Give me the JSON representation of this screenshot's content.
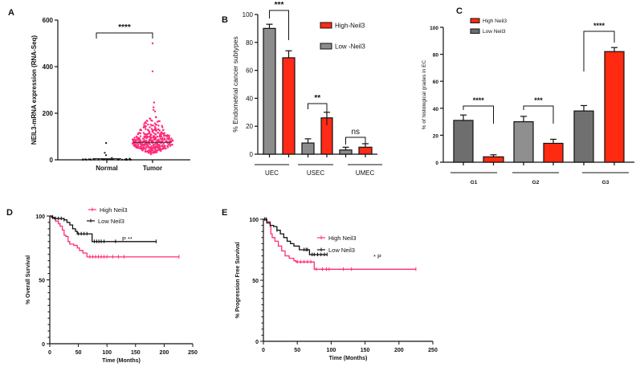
{
  "panel_labels": [
    "A",
    "B",
    "C",
    "D",
    "E"
  ],
  "chart_data": [
    {
      "panel": "A",
      "type": "scatter",
      "ylabel": "NEIL3-mRNA expression (RNA-Seq)",
      "categories": [
        "Normal",
        "Tumor"
      ],
      "ylim": [
        0,
        600
      ],
      "yticks": [
        0,
        200,
        400,
        600
      ],
      "medians": [
        5,
        75
      ],
      "max_values": [
        72,
        500
      ],
      "colors": [
        "#111111",
        "#ff2d7a"
      ],
      "significance": "****"
    },
    {
      "panel": "B",
      "type": "bar",
      "ylabel": "% Endometrial cancer subtypes",
      "categories": [
        "UEC",
        "USEC",
        "UMEC"
      ],
      "ylim": [
        0,
        100
      ],
      "yticks": [
        0,
        20,
        40,
        60,
        80,
        100
      ],
      "series": [
        {
          "name": "High-Neil3",
          "values": [
            69,
            26,
            5
          ],
          "errors": [
            5,
            4,
            2.5
          ],
          "color": "#ff2a17"
        },
        {
          "name": "Low -Neil3",
          "values": [
            90,
            8,
            3
          ],
          "errors": [
            3,
            3,
            2
          ],
          "color": "#8c8c8c"
        }
      ],
      "significance": [
        "***",
        "**",
        "ns"
      ],
      "legend": "top-right"
    },
    {
      "panel": "C",
      "type": "bar",
      "ylabel": "% of histological grades in EC",
      "categories": [
        "G1",
        "G2",
        "G3"
      ],
      "ylim": [
        0,
        100
      ],
      "yticks": [
        0,
        20,
        40,
        60,
        80,
        100
      ],
      "series": [
        {
          "name": "High Neil3",
          "values": [
            4,
            14,
            82
          ],
          "errors": [
            1.5,
            3,
            3
          ],
          "color": "#ff2a10"
        },
        {
          "name": "Low Neil3",
          "values": [
            31,
            30,
            38
          ],
          "errors": [
            4,
            4,
            4
          ],
          "color": "#707070"
        }
      ],
      "significance": [
        "****",
        "***",
        "****"
      ],
      "legend": "top-left"
    },
    {
      "panel": "D",
      "type": "line",
      "ylabel": "% Overall Survival",
      "xlabel": "Time (Months)",
      "xlim": [
        0,
        250
      ],
      "ylim": [
        0,
        100
      ],
      "xticks": [
        0,
        50,
        100,
        150,
        200,
        250
      ],
      "yticks": [
        0,
        50,
        100
      ],
      "annotation": "P **",
      "series": [
        {
          "name": "High Neil3",
          "color": "#ff2d7a",
          "steps": [
            [
              0,
              100
            ],
            [
              5,
              98
            ],
            [
              10,
              96
            ],
            [
              15,
              94
            ],
            [
              18,
              92
            ],
            [
              22,
              89
            ],
            [
              25,
              85
            ],
            [
              28,
              84
            ],
            [
              32,
              80
            ],
            [
              35,
              78
            ],
            [
              42,
              77
            ],
            [
              48,
              75
            ],
            [
              52,
              73
            ],
            [
              58,
              71
            ],
            [
              65,
              68
            ],
            [
              226,
              68
            ]
          ],
          "censored": [
            70,
            75,
            80,
            85,
            90,
            95,
            100,
            110,
            120,
            130,
            226
          ]
        },
        {
          "name": "Low Neil3",
          "color": "#111111",
          "steps": [
            [
              0,
              100
            ],
            [
              3,
              99
            ],
            [
              8,
              98
            ],
            [
              25,
              97
            ],
            [
              30,
              95
            ],
            [
              35,
              93
            ],
            [
              40,
              90
            ],
            [
              45,
              88
            ],
            [
              48,
              86
            ],
            [
              74,
              80
            ],
            [
              186,
              80
            ]
          ],
          "censored": [
            5,
            10,
            15,
            20,
            25,
            50,
            55,
            60,
            65,
            78,
            82,
            86,
            90,
            95,
            115,
            186
          ]
        }
      ]
    },
    {
      "panel": "E",
      "type": "line",
      "ylabel": "% Progression Free Survival",
      "xlabel": "Time (Months)",
      "xlim": [
        0,
        250
      ],
      "ylim": [
        0,
        100
      ],
      "xticks": [
        0,
        50,
        100,
        150,
        200,
        250
      ],
      "yticks": [
        0,
        50,
        100
      ],
      "annotation": "* P",
      "series": [
        {
          "name": "High Neil3",
          "color": "#ff2d7a",
          "steps": [
            [
              0,
              100
            ],
            [
              5,
              98
            ],
            [
              10,
              94
            ],
            [
              11,
              88
            ],
            [
              13,
              85
            ],
            [
              17,
              82
            ],
            [
              22,
              78
            ],
            [
              27,
              74
            ],
            [
              32,
              70
            ],
            [
              38,
              68
            ],
            [
              45,
              66
            ],
            [
              48,
              65
            ],
            [
              75,
              59
            ],
            [
              225,
              59
            ]
          ],
          "censored": [
            50,
            55,
            60,
            65,
            70,
            78,
            87,
            93,
            97,
            118,
            130,
            225
          ]
        },
        {
          "name": "Low Neil3",
          "color": "#111111",
          "steps": [
            [
              0,
              100
            ],
            [
              5,
              97
            ],
            [
              10,
              95
            ],
            [
              15,
              94
            ],
            [
              20,
              91
            ],
            [
              25,
              88
            ],
            [
              30,
              85
            ],
            [
              35,
              82
            ],
            [
              40,
              80
            ],
            [
              45,
              78
            ],
            [
              53,
              75
            ],
            [
              68,
              71
            ],
            [
              94,
              71
            ]
          ],
          "censored": [
            2,
            4,
            20,
            60,
            63,
            65,
            72,
            75,
            80,
            85,
            90,
            94
          ]
        }
      ]
    }
  ]
}
